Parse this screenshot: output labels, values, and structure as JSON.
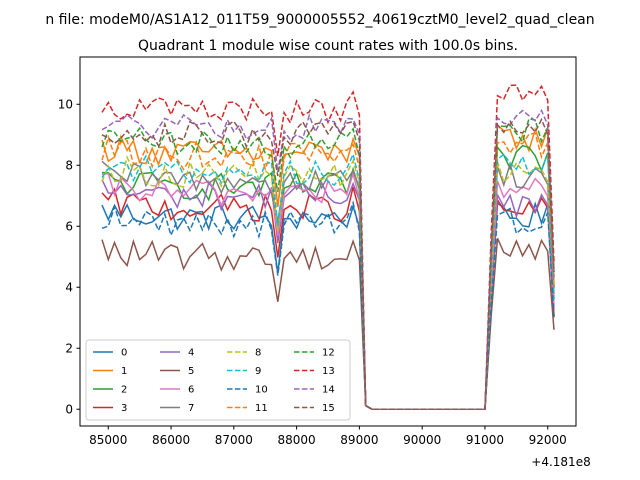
{
  "figure": {
    "suptitle": "n file: modeM0/AS1A12_011T59_9000005552_40619cztM0_level2_quad_clean"
  },
  "chart_data": {
    "type": "line",
    "title": "Quadrant 1 module wise count rates with 100.0s bins.",
    "xlabel": "",
    "ylabel": "",
    "x_offset_label": "+4.181e8",
    "xlim": [
      84550,
      92450
    ],
    "ylim": [
      -0.55,
      11.55
    ],
    "x_ticks": [
      85000,
      86000,
      87000,
      88000,
      89000,
      90000,
      91000,
      92000
    ],
    "y_ticks": [
      0,
      2,
      4,
      6,
      8,
      10
    ],
    "grid": false,
    "legend": {
      "location": "lower-left",
      "columns": 4
    },
    "x": {
      "segments": [
        {
          "start": 84900,
          "end": 89200,
          "step": 100
        },
        {
          "start": 91000,
          "end": 92100,
          "step": 100
        }
      ],
      "gap_start": 89200,
      "gap_end": 91000,
      "gap_value": 0
    },
    "dip_x": 87700,
    "series": [
      {
        "name": "0",
        "color": "#1f77b4",
        "style": "solid",
        "level_a": 6.3,
        "level_b": 6.3
      },
      {
        "name": "1",
        "color": "#ff7f0e",
        "style": "solid",
        "level_a": 8.4,
        "level_b": 8.9
      },
      {
        "name": "2",
        "color": "#2ca02c",
        "style": "solid",
        "level_a": 7.3,
        "level_b": 8.2
      },
      {
        "name": "3",
        "color": "#d62728",
        "style": "solid",
        "level_a": 6.6,
        "level_b": 6.5
      },
      {
        "name": "4",
        "color": "#9467bd",
        "style": "solid",
        "level_a": 7.0,
        "level_b": 6.7
      },
      {
        "name": "5",
        "color": "#8c564b",
        "style": "solid",
        "level_a": 5.0,
        "level_b": 5.3
      },
      {
        "name": "6",
        "color": "#e377c2",
        "style": "solid",
        "level_a": 7.1,
        "level_b": 7.2
      },
      {
        "name": "7",
        "color": "#7f7f7f",
        "style": "solid",
        "level_a": 7.5,
        "level_b": 7.7
      },
      {
        "name": "8",
        "color": "#bcbd22",
        "style": "dashed",
        "level_a": 7.7,
        "level_b": 7.9
      },
      {
        "name": "9",
        "color": "#17becf",
        "style": "dashed",
        "level_a": 7.8,
        "level_b": 8.0
      },
      {
        "name": "10",
        "color": "#1f77b4",
        "style": "dashed",
        "level_a": 6.1,
        "level_b": 6.2
      },
      {
        "name": "11",
        "color": "#ff7f0e",
        "style": "dashed",
        "level_a": 8.3,
        "level_b": 8.6
      },
      {
        "name": "12",
        "color": "#2ca02c",
        "style": "dashed",
        "level_a": 8.7,
        "level_b": 9.2
      },
      {
        "name": "13",
        "color": "#d62728",
        "style": "dashed",
        "level_a": 9.8,
        "level_b": 10.2
      },
      {
        "name": "14",
        "color": "#9467bd",
        "style": "dashed",
        "level_a": 9.2,
        "level_b": 9.5
      },
      {
        "name": "15",
        "color": "#8c564b",
        "style": "dashed",
        "level_a": 9.0,
        "level_b": 9.3
      }
    ]
  }
}
